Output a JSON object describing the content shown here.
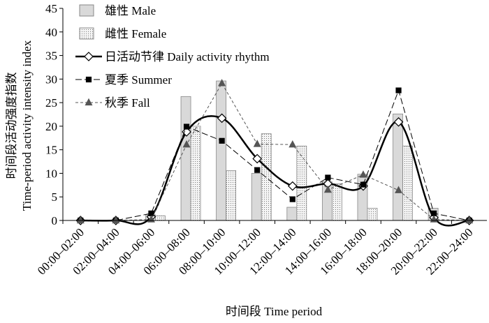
{
  "chart_data": {
    "type": "bar",
    "ylabel": [
      "时间段活动强度指数",
      "Time-period activity intensity index"
    ],
    "xlabel": "时间段 Time period",
    "categories": [
      "00:00–02:00",
      "02:00–04:00",
      "04:00–06:00",
      "06:00–08:00",
      "08:00–10:00",
      "10:00–12:00",
      "12:00–14:00",
      "14:00–16:00",
      "16:00–18:00",
      "18:00–20:00",
      "20:00–22:00",
      "22:00–24:00"
    ],
    "ylim": [
      0,
      45
    ],
    "yticks": [
      0,
      5,
      10,
      15,
      20,
      25,
      30,
      35,
      40,
      45
    ],
    "series": [
      {
        "name": "雄性 Male",
        "kind": "bar",
        "color": "#d9d9d9",
        "values": [
          0,
          0,
          1.2,
          26.3,
          29.6,
          10,
          2.8,
          8.2,
          9.8,
          22.6,
          2.6,
          0
        ]
      },
      {
        "name": "雌性 Female",
        "kind": "bar",
        "color": "#bdbdbd",
        "pattern": "dots",
        "values": [
          0,
          0,
          1.0,
          20,
          10.6,
          18.4,
          15.8,
          7.8,
          2.6,
          15.8,
          0,
          0
        ]
      },
      {
        "name": "日活动节律 Daily activity rhythm",
        "kind": "line",
        "color": "#000000",
        "marker": "diamond",
        "smooth": true,
        "width": 2.5,
        "values": [
          0,
          0,
          0.8,
          18.8,
          21.7,
          13.1,
          7.3,
          7.8,
          7.3,
          20.9,
          0.6,
          0
        ]
      },
      {
        "name": "夏季 Summer",
        "kind": "line",
        "color": "#000000",
        "marker": "square",
        "dash": "9,4",
        "width": 1,
        "values": [
          0,
          0,
          1.5,
          19.9,
          16.9,
          10.7,
          4.5,
          9.1,
          7.6,
          27.6,
          1.5,
          0
        ]
      },
      {
        "name": "秋季 Fall",
        "kind": "line",
        "color": "#555555",
        "marker": "triangle",
        "dash": "4,3",
        "width": 1,
        "values": [
          0,
          0,
          0.2,
          16.1,
          29.1,
          16.2,
          16.1,
          6.5,
          9.7,
          6.4,
          0.2,
          0
        ]
      }
    ]
  }
}
